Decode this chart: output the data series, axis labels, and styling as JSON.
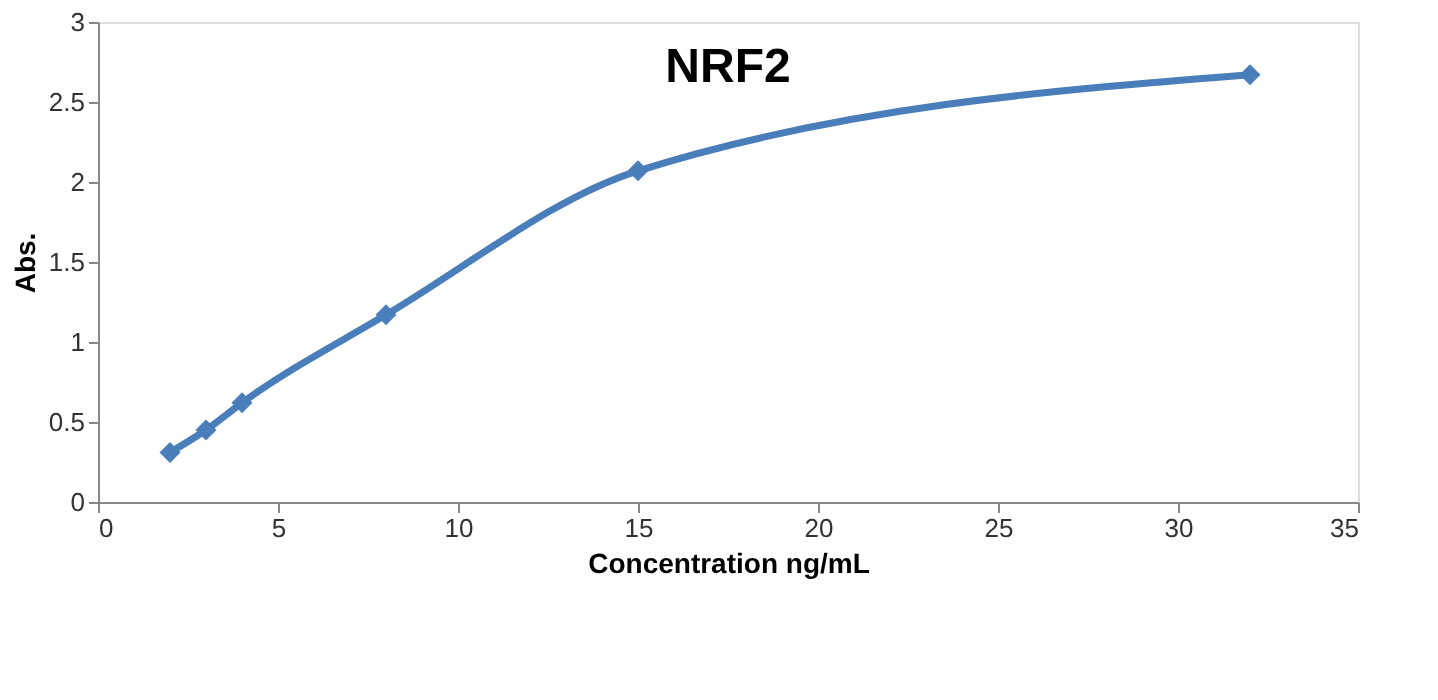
{
  "chart_data": {
    "type": "line",
    "title": "NRF2",
    "xlabel": "Concentration ng/mL",
    "ylabel": "Abs.",
    "x": [
      2,
      3,
      4,
      8,
      15,
      32
    ],
    "series": [
      {
        "color": "#4a7ebb",
        "values": [
          0.31,
          0.45,
          0.62,
          1.17,
          2.07,
          2.67
        ]
      }
    ],
    "xlim": [
      0,
      35
    ],
    "xticks": [
      0,
      5,
      10,
      15,
      20,
      25,
      30,
      35
    ],
    "ylim": [
      0,
      3
    ],
    "yticks": [
      0,
      0.5,
      1,
      1.5,
      2,
      2.5,
      3
    ],
    "grid": false,
    "marker": "diamond",
    "line_style": "solid"
  }
}
